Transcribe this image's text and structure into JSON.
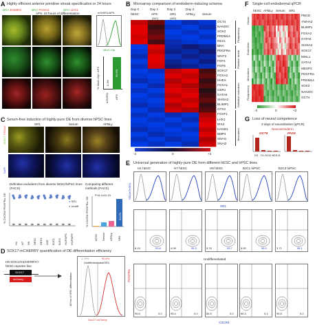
{
  "panelA": {
    "letter": "A",
    "title": "Highly efficient anterior primitive streak specification in 24 hours",
    "legend": [
      {
        "text": "BRA",
        "color": "#4caf50"
      },
      {
        "text": "EOMES",
        "color": "#e53935"
      },
      {
        "text": "BRA",
        "color": "#4caf50"
      },
      {
        "text": "FOXA2",
        "color": "#e53935"
      },
      {
        "text": "BRA",
        "color": "#4caf50"
      },
      {
        "text": "LHX1",
        "color": "#e53935"
      }
    ],
    "apsLabel": "APS, 24 hours of differentiation",
    "histLabel": "mTeSR1/APS",
    "histXlabel": "Mixl1-Gfp",
    "barYlabel": "% Mixl1-Gfp+ APS",
    "barValues": [
      "0.3%",
      "99.3%"
    ],
    "barCats": [
      "mTeSR1",
      "APS"
    ]
  },
  "panelB": {
    "letter": "B",
    "title": "Microarray comparison of endoderm-inducing schema",
    "days": [
      "Day 0",
      "Day 1",
      "Day 2",
      "Day 3"
    ],
    "cols": [
      "hESC",
      "APS",
      "SR1",
      "AFBLy",
      "Serum"
    ],
    "colSub": [
      "",
      "(A/C)",
      "(A/D)",
      "",
      ""
    ],
    "genes": [
      "OCT4",
      "NANOG",
      "SOX2",
      "PRDM14",
      "REX1",
      "BRA",
      "PDGFRa",
      "WNT3",
      "FGF4",
      "FGF8",
      "SOX17",
      "FOXA2",
      "HHEX",
      "FOXA1",
      "CER1",
      "GATA6",
      "SHISA2",
      "BLIMP1",
      "OTX2",
      "FOXF1",
      "LHX1",
      "IRX3",
      "HAND1",
      "BMP4",
      "SNAI1",
      "SNAI2"
    ],
    "groups": [
      "Pluripotency",
      "Primitive streak",
      "Definitive endoderm",
      "Mesoderm"
    ],
    "scale": [
      "-3",
      "0",
      "+3"
    ]
  },
  "panelC": {
    "letter": "C",
    "title": "Serum-free induction of highly-pure DE from diverse hPSC lines",
    "images": [
      "SR1",
      "Serum",
      "AFBLy"
    ],
    "channels": [
      {
        "text": "SOX17",
        "color": "#6fbf3a"
      },
      {
        "text": "FOXA2",
        "color": "#e53935"
      },
      {
        "text": "DAPI",
        "color": "#3b4bd6"
      }
    ],
    "dotTitle": "Definitive endoderm from diverse hESC/hiPSC lines (FACS)",
    "dotYlabel": "% CXCR4+PDGFRa- DE",
    "dotLegend": [
      "SR1",
      "Undiff"
    ],
    "lines": [
      "H1",
      "H7",
      "H9",
      "HES2",
      "HES3",
      "H1E",
      "BJC1",
      "BJC3",
      "HUF5iPS",
      "HUF6iPS"
    ],
    "barTitle": "Comparing different methods (FACS)",
    "barPval": "P<6.1x10-15",
    "barCats": [
      "hESC",
      "Serum",
      "AFBLy",
      "SR1"
    ],
    "barValue": "94.0%",
    "barYlabel": "% CXCR4+PDGFRa- DE"
  },
  "panelD": {
    "letter": "D",
    "title": "SOX17-mCHERRY quantification of DE differentiation efficiency",
    "line1": "H9 SOX17mCHERRY/+",
    "line2": "hESC reporter line",
    "gene1": "SOX17",
    "gene2": "mCherry",
    "histTop": [
      "1.79%",
      "90.6%"
    ],
    "histLegend": "Undifferentiated/SR1",
    "histYlabel": "48 hrs of SR1 differentiation",
    "histXlabel": "Sox17-mCherry"
  },
  "panelE": {
    "letter": "E",
    "title": "Universal generation of highly-pure DE from different hESC and hPSC lines",
    "lines": [
      "H1 hESC",
      "H7 hESC",
      "H9 hESC",
      "BJC1 hiPSC",
      "BJC3 hiPSC"
    ],
    "histLegend": "SR1/mTeSR1",
    "sr1Label": "SR1",
    "undiffLabel": "Undifferentiated",
    "ylabel": "PDGFRa",
    "xlabel": "CXCR4",
    "sr1Values": [
      "93.8",
      "95.3",
      "93.7",
      "96.0",
      "96.1"
    ],
    "sr1Left": [
      "6.19",
      "4.09",
      "5.78",
      "3.52",
      "3.71"
    ],
    "undiffValues": [
      "0.0",
      "0.0",
      "0.0",
      "0.1",
      "0.2"
    ],
    "undiffLeft": [
      "95.6",
      "95.4",
      "84.5",
      "96.3",
      "95.8"
    ]
  },
  "panelF": {
    "letter": "F",
    "title": "Single-cell endodermal qPCR",
    "cols": [
      "hESC",
      "AFBLy",
      "Serum",
      "SR1"
    ],
    "genes": [
      "PBGD",
      "YWHAZ",
      "BLIMP1",
      "FOXA2",
      "GATA6",
      "SHISA2",
      "SOX17",
      "MIXL1",
      "GATA4",
      "MESP2",
      "PDGFRa",
      "PRDM14",
      "SOX2",
      "NANOG",
      "OCT4"
    ],
    "groups": [
      "House",
      "Endoderm",
      "Mesoderm",
      "Pluripotency"
    ],
    "scale": [
      "-3",
      "0",
      "+3"
    ]
  },
  "panelG": {
    "letter": "G",
    "title": "Loss of neural competence",
    "subtitle": "3 days of neuralization (qPCR)",
    "subtitle2": "Neuroectoderm",
    "genes": [
      {
        "text": "OCT6",
        "color": "#c62828"
      },
      {
        "text": "PAX6",
        "color": "#c62828"
      }
    ],
    "cats": [
      "D0",
      "D1-N",
      "D2-N",
      "D3-N"
    ],
    "colors": {
      "bar": "#b3261e",
      "line": "#1f3fbf",
      "green": "#2e9b32",
      "red": "#d32f2f"
    }
  }
}
